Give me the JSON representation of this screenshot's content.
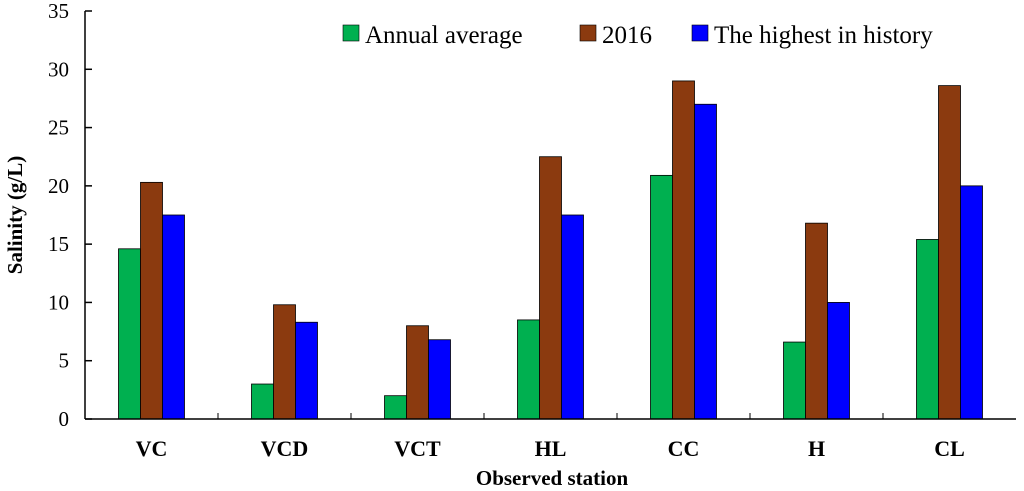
{
  "chart_data": {
    "type": "bar",
    "title": "",
    "xlabel": "Observed station",
    "ylabel": "Salinity (g/L)",
    "ylim": [
      0,
      35
    ],
    "yticks": [
      0,
      5,
      10,
      15,
      20,
      25,
      30,
      35
    ],
    "categories": [
      "VC",
      "VCD",
      "VCT",
      "HL",
      "CC",
      "H",
      "CL"
    ],
    "series": [
      {
        "name": "Annual average",
        "color": "#00b050",
        "values": [
          14.6,
          3.0,
          2.0,
          8.5,
          20.9,
          6.6,
          15.4
        ]
      },
      {
        "name": "2016",
        "color": "#8b3a0f",
        "values": [
          20.3,
          9.8,
          8.0,
          22.5,
          29.0,
          16.8,
          28.6
        ]
      },
      {
        "name": "The highest in history",
        "color": "#0000ff",
        "values": [
          17.5,
          8.3,
          6.8,
          17.5,
          27.0,
          10.0,
          20.0
        ]
      }
    ],
    "legend": "top-right",
    "grid": false
  }
}
